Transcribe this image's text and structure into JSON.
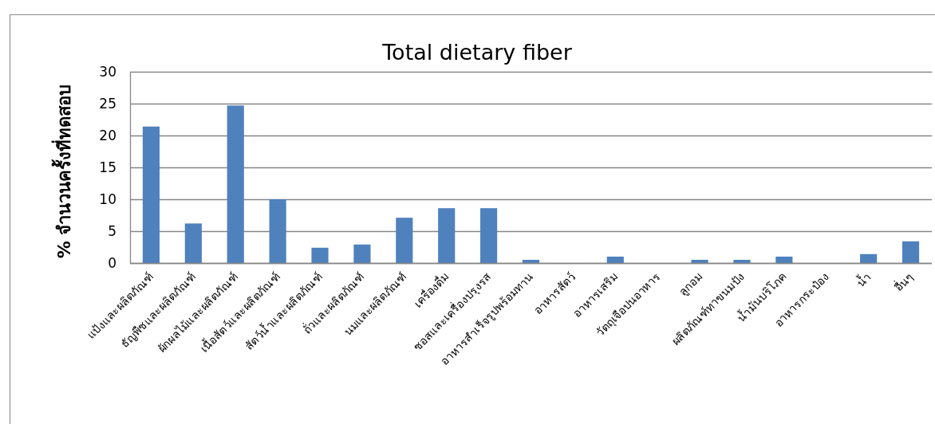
{
  "chart_data": {
    "type": "bar",
    "title": "Total dietary fiber",
    "ylabel": "% จำนวนครั้งที่ทดสอบ",
    "categories": [
      "แป้งและผลิตภัณฑ์",
      "ธัญพืชและผลิตภัณฑ์",
      "ผักผลไม้และผลิตภัณฑ์",
      "เนื้อสัตว์และผลิตภัณฑ์",
      "สัตว์น้ำและผลิตภัณฑ์",
      "ถั่วและผลิตภัณฑ์",
      "นมและผลิตภัณฑ์",
      "เครื่องดื่ม",
      "ซอสและเครื่องปรุงรส",
      "อาหารสำเร็จรูปพร้อมทาน",
      "อาหารสัตว์",
      "อาหารเสริม",
      "วัตถุเจือปนอาหาร",
      "ลูกอม",
      "ผลิตภัณฑ์ทาขนมปัง",
      "น้ำมันบริโภค",
      "อาหารกระป๋อง",
      "น้ำ",
      "อื่นๆ"
    ],
    "values": [
      21.4,
      6.2,
      24.7,
      10.0,
      2.4,
      2.9,
      7.1,
      8.6,
      8.6,
      0.5,
      0,
      1.0,
      0,
      0.5,
      0.5,
      1.0,
      0,
      1.4,
      3.4
    ],
    "color": "#4f81bd",
    "ylim": [
      0,
      30
    ],
    "yticks": [
      0,
      5,
      10,
      15,
      20,
      25,
      30
    ],
    "grid": "y"
  }
}
